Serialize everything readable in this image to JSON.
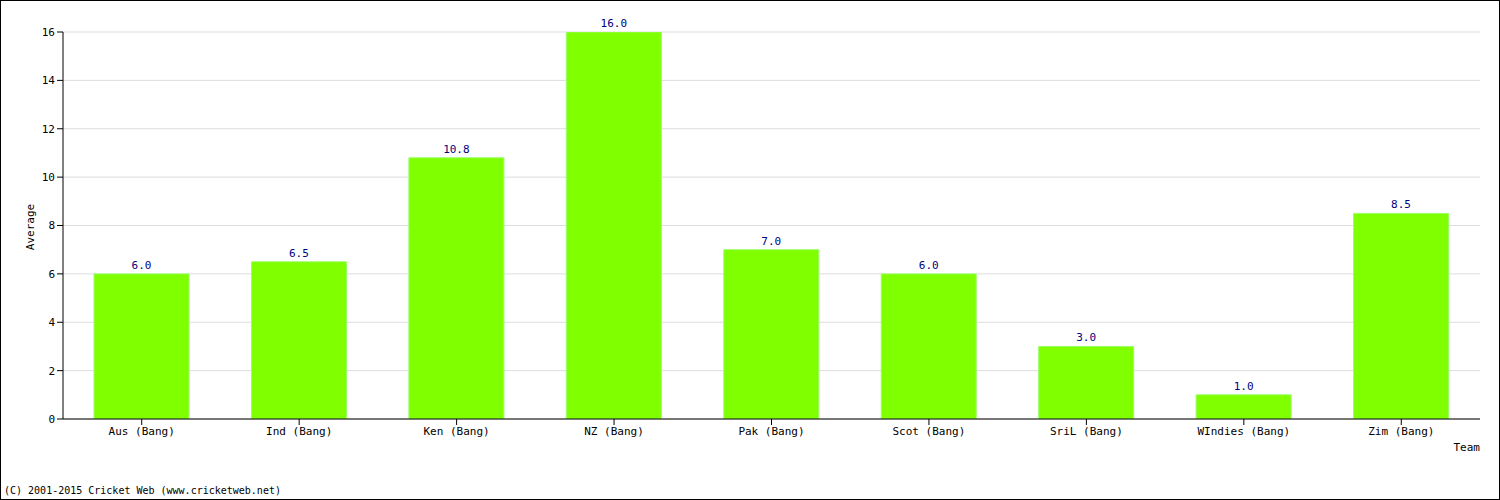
{
  "chart_data": {
    "type": "bar",
    "x_label": "Team",
    "y_label": "Average",
    "categories": [
      "Aus (Bang)",
      "Ind (Bang)",
      "Ken (Bang)",
      "NZ (Bang)",
      "Pak (Bang)",
      "Scot (Bang)",
      "SriL (Bang)",
      "WIndies (Bang)",
      "Zim (Bang)"
    ],
    "values": [
      6.0,
      6.5,
      10.8,
      16.0,
      7.0,
      6.0,
      3.0,
      1.0,
      8.5
    ],
    "value_labels": [
      "6.0",
      "6.5",
      "10.8",
      "16.0",
      "7.0",
      "6.0",
      "3.0",
      "1.0",
      "8.5"
    ],
    "data_labels": true,
    "color": "#80ff00",
    "ylim": [
      0,
      16
    ],
    "yticks": [
      0,
      2,
      4,
      6,
      8,
      10,
      12,
      14,
      16
    ],
    "grid": true,
    "annotations": [
      "(C) 2001-2015 Cricket Web (www.cricketweb.net)"
    ]
  }
}
